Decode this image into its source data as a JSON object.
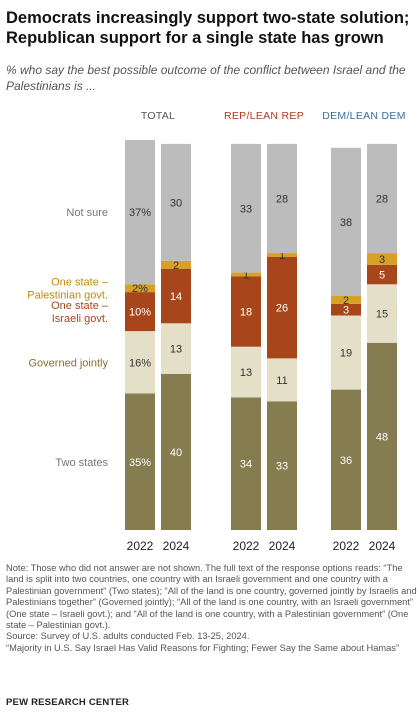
{
  "header": {
    "title": "Democrats increasingly support two-state solution; Republican support for a single state has grown",
    "subtitle": "% who say the best possible outcome of the conflict between Israel and the Palestinians is ..."
  },
  "chart_data": {
    "type": "bar",
    "stacked": true,
    "categories": [
      "Two states",
      "Governed jointly",
      "One state – Israeli govt.",
      "One state – Palestinian govt.",
      "Not sure"
    ],
    "category_labels": [
      [
        "Two states"
      ],
      [
        "Governed jointly"
      ],
      [
        "One state –",
        "Israeli govt."
      ],
      [
        "One state –",
        "Palestinian govt."
      ],
      [
        "Not sure"
      ]
    ],
    "colors": [
      "#857d4f",
      "#e4dfc7",
      "#a8461b",
      "#d6a125",
      "#bcbcbc"
    ],
    "label_colors": [
      "#ffffff",
      "#333333",
      "#ffffff",
      "#333333",
      "#333333"
    ],
    "category_label_colors": [
      "#777777",
      "#8a6f2a",
      "#a8461b",
      "#c08a12",
      "#777777"
    ],
    "groups": [
      {
        "name": "TOTAL",
        "name_color": "#555555",
        "years": [
          "2022",
          "2024"
        ],
        "values": [
          [
            35,
            16,
            10,
            2,
            37
          ],
          [
            40,
            13,
            14,
            2,
            30
          ]
        ],
        "value_labels": [
          [
            "35%",
            "16%",
            "10%",
            "2%",
            "37%"
          ],
          [
            "40",
            "13",
            "14",
            "2",
            "30"
          ]
        ]
      },
      {
        "name": "REP/LEAN REP",
        "name_color": "#b5381d",
        "years": [
          "2022",
          "2024"
        ],
        "values": [
          [
            34,
            13,
            18,
            1,
            33
          ],
          [
            33,
            11,
            26,
            1,
            28
          ]
        ],
        "value_labels": [
          [
            "34",
            "13",
            "18",
            "1",
            "33"
          ],
          [
            "33",
            "11",
            "26",
            "1",
            "28"
          ]
        ]
      },
      {
        "name": "DEM/LEAN DEM",
        "name_color": "#3b6d9a",
        "years": [
          "2022",
          "2024"
        ],
        "values": [
          [
            36,
            19,
            3,
            2,
            38
          ],
          [
            48,
            15,
            5,
            3,
            28
          ]
        ],
        "value_labels": [
          [
            "36",
            "19",
            "3",
            "2",
            "38"
          ],
          [
            "48",
            "15",
            "5",
            "3",
            "28"
          ]
        ]
      }
    ]
  },
  "notes": {
    "note": "Note: Those who did not answer are not shown. The full text of the response options reads: “The land is split into two countries, one country with an Israeli government and one country with a Palestinian government” (Two states); “All of the land is one country, governed jointly by Israelis and Palestinians together” (Governed jointly); “All of the land is one country, with an Israeli government” (One state – Israeli govt.); and “All of the land is one country, with a Palestinian government” (One state – Palestinian govt.).",
    "source": "Source: Survey of U.S. adults conducted Feb. 13-25, 2024.",
    "report": "“Majority in U.S. Say Israel Has Valid Reasons for Fighting; Fewer Say the Same about Hamas”"
  },
  "footer": {
    "org": "PEW RESEARCH CENTER"
  }
}
